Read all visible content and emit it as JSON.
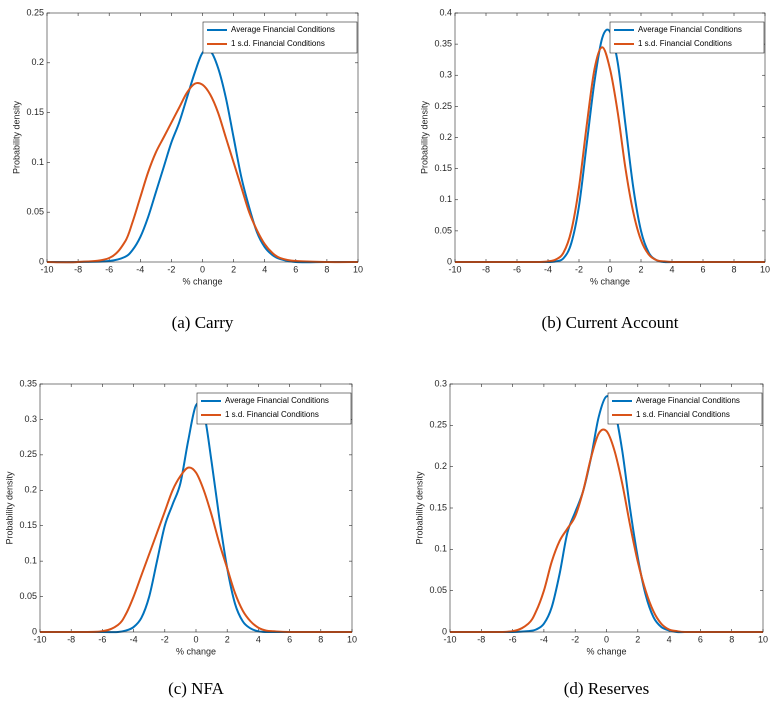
{
  "chart_data": [
    {
      "type": "line",
      "caption": "(a)  Carry",
      "xlabel": "% change",
      "ylabel": "Probability density",
      "x": [
        -10,
        -8,
        -6,
        -5,
        -4.5,
        -4,
        -3.5,
        -3,
        -2.5,
        -2,
        -1.5,
        -1,
        -0.5,
        0,
        0.5,
        1,
        1.5,
        2,
        2.5,
        3,
        3.5,
        4,
        4.5,
        5,
        6,
        8,
        10
      ],
      "xlim": [
        -10,
        10
      ],
      "xticks": [
        -10,
        -8,
        -6,
        -4,
        -2,
        0,
        2,
        4,
        6,
        8,
        10
      ],
      "ylim": [
        0,
        0.25
      ],
      "yticks": [
        0,
        0.05,
        0.1,
        0.15,
        0.2,
        0.25
      ],
      "legend": "upper right",
      "series": [
        {
          "name": "Average Financial Conditions",
          "color": "#0072bd",
          "values": [
            0,
            0,
            0.001,
            0.005,
            0.012,
            0.025,
            0.045,
            0.07,
            0.095,
            0.12,
            0.14,
            0.165,
            0.19,
            0.21,
            0.212,
            0.195,
            0.165,
            0.125,
            0.085,
            0.055,
            0.03,
            0.015,
            0.007,
            0.003,
            0,
            0,
            0
          ]
        },
        {
          "name": "1 s.d. Financial Conditions",
          "color": "#d95319",
          "values": [
            0,
            0,
            0.004,
            0.02,
            0.04,
            0.065,
            0.09,
            0.11,
            0.125,
            0.14,
            0.155,
            0.17,
            0.179,
            0.178,
            0.168,
            0.15,
            0.125,
            0.1,
            0.075,
            0.05,
            0.032,
            0.018,
            0.009,
            0.004,
            0.001,
            0,
            0
          ]
        }
      ]
    },
    {
      "type": "line",
      "caption": "(b)  Current Account",
      "xlabel": "% change",
      "ylabel": "Probability density",
      "x": [
        -10,
        -8,
        -6,
        -5,
        -4.5,
        -4,
        -3.5,
        -3,
        -2.5,
        -2,
        -1.5,
        -1,
        -0.5,
        0,
        0.5,
        1,
        1.5,
        2,
        2.5,
        3,
        3.5,
        4,
        4.5,
        5,
        6,
        8,
        10
      ],
      "xlim": [
        -10,
        10
      ],
      "xticks": [
        -10,
        -8,
        -6,
        -4,
        -2,
        0,
        2,
        4,
        6,
        8,
        10
      ],
      "ylim": [
        0,
        0.4
      ],
      "yticks": [
        0,
        0.05,
        0.1,
        0.15,
        0.2,
        0.25,
        0.3,
        0.35,
        0.4
      ],
      "legend": "upper right",
      "series": [
        {
          "name": "Average Financial Conditions",
          "color": "#0072bd",
          "values": [
            0,
            0,
            0,
            0,
            0,
            0,
            0.001,
            0.006,
            0.03,
            0.09,
            0.19,
            0.29,
            0.36,
            0.37,
            0.32,
            0.22,
            0.12,
            0.05,
            0.015,
            0.003,
            0,
            0,
            0,
            0,
            0,
            0,
            0
          ]
        },
        {
          "name": "1 s.d. Financial Conditions",
          "color": "#d95319",
          "values": [
            0,
            0,
            0,
            0,
            0,
            0.001,
            0.004,
            0.015,
            0.05,
            0.12,
            0.22,
            0.31,
            0.345,
            0.31,
            0.24,
            0.15,
            0.08,
            0.035,
            0.012,
            0.003,
            0.001,
            0,
            0,
            0,
            0,
            0,
            0
          ]
        }
      ]
    },
    {
      "type": "line",
      "caption": "(c)  NFA",
      "xlabel": "% change",
      "ylabel": "Probability density",
      "x": [
        -10,
        -8,
        -6,
        -5,
        -4.5,
        -4,
        -3.5,
        -3,
        -2.5,
        -2,
        -1.5,
        -1,
        -0.5,
        0,
        0.5,
        1,
        1.5,
        2,
        2.5,
        3,
        3.5,
        4,
        4.5,
        5,
        6,
        8,
        10
      ],
      "xlim": [
        -10,
        10
      ],
      "xticks": [
        -10,
        -8,
        -6,
        -4,
        -2,
        0,
        2,
        4,
        6,
        8,
        10
      ],
      "ylim": [
        0,
        0.35
      ],
      "yticks": [
        0,
        0.05,
        0.1,
        0.15,
        0.2,
        0.25,
        0.3,
        0.35
      ],
      "legend": "upper right",
      "series": [
        {
          "name": "Average Financial Conditions",
          "color": "#0072bd",
          "values": [
            0,
            0,
            0,
            0,
            0.002,
            0.007,
            0.02,
            0.05,
            0.1,
            0.15,
            0.18,
            0.21,
            0.27,
            0.32,
            0.31,
            0.24,
            0.16,
            0.09,
            0.04,
            0.015,
            0.005,
            0.001,
            0,
            0,
            0,
            0,
            0
          ]
        },
        {
          "name": "1 s.d. Financial Conditions",
          "color": "#d95319",
          "values": [
            0,
            0,
            0.001,
            0.01,
            0.025,
            0.05,
            0.08,
            0.11,
            0.14,
            0.17,
            0.2,
            0.22,
            0.232,
            0.225,
            0.2,
            0.165,
            0.125,
            0.09,
            0.055,
            0.03,
            0.015,
            0.006,
            0.002,
            0.001,
            0,
            0,
            0
          ]
        }
      ]
    },
    {
      "type": "line",
      "caption": "(d)  Reserves",
      "xlabel": "% change",
      "ylabel": "Probability density",
      "x": [
        -10,
        -8,
        -6,
        -5,
        -4.5,
        -4,
        -3.5,
        -3,
        -2.5,
        -2,
        -1.5,
        -1,
        -0.5,
        0,
        0.5,
        1,
        1.5,
        2,
        2.5,
        3,
        3.5,
        4,
        4.5,
        5,
        6,
        8,
        10
      ],
      "xlim": [
        -10,
        10
      ],
      "xticks": [
        -10,
        -8,
        -6,
        -4,
        -2,
        0,
        2,
        4,
        6,
        8,
        10
      ],
      "ylim": [
        0,
        0.3
      ],
      "yticks": [
        0,
        0.05,
        0.1,
        0.15,
        0.2,
        0.25,
        0.3
      ],
      "legend": "upper right",
      "series": [
        {
          "name": "Average Financial Conditions",
          "color": "#0072bd",
          "values": [
            0,
            0,
            0,
            0.001,
            0.003,
            0.01,
            0.03,
            0.07,
            0.12,
            0.145,
            0.17,
            0.21,
            0.26,
            0.285,
            0.27,
            0.22,
            0.15,
            0.09,
            0.045,
            0.018,
            0.006,
            0.002,
            0,
            0,
            0,
            0,
            0
          ]
        },
        {
          "name": "1 s.d. Financial Conditions",
          "color": "#d95319",
          "values": [
            0,
            0,
            0.001,
            0.01,
            0.025,
            0.05,
            0.085,
            0.11,
            0.125,
            0.14,
            0.17,
            0.21,
            0.24,
            0.243,
            0.22,
            0.18,
            0.13,
            0.085,
            0.05,
            0.025,
            0.01,
            0.003,
            0.001,
            0,
            0,
            0,
            0
          ]
        }
      ]
    }
  ]
}
